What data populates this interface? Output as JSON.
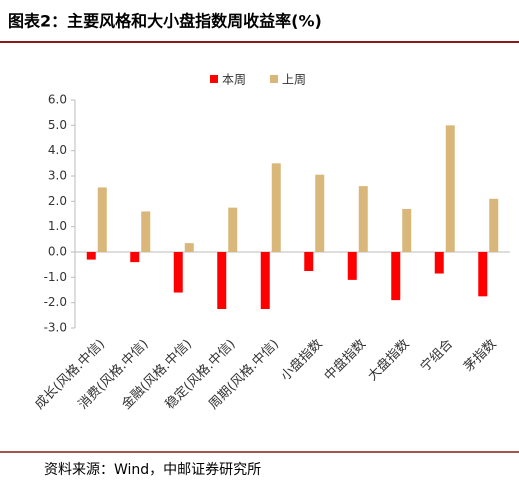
{
  "chart_data": {
    "type": "bar",
    "title": "图表2：主要风格和大小盘指数周收益率(%)",
    "source": "资料来源：Wind，中邮证券研究所",
    "categories": [
      "成长(风格.中信)",
      "消费(风格.中信)",
      "金融(风格.中信)",
      "稳定(风格.中信)",
      "周期(风格.中信)",
      "小盘指数",
      "中盘指数",
      "大盘指数",
      "宁组合",
      "茅指数"
    ],
    "series": [
      {
        "name": "本周",
        "color": "#ff0000",
        "values": [
          -0.3,
          -0.4,
          -1.6,
          -2.25,
          -2.25,
          -0.75,
          -1.1,
          -1.9,
          -0.85,
          -1.75
        ]
      },
      {
        "name": "上周",
        "color": "#d9b77a",
        "values": [
          2.55,
          1.6,
          0.35,
          1.75,
          3.5,
          3.05,
          2.6,
          1.7,
          5.0,
          2.1
        ]
      }
    ],
    "ylim": [
      -3,
      6
    ],
    "yticks": [
      {
        "value": 6,
        "label": "6.0"
      },
      {
        "value": 5,
        "label": "5.0"
      },
      {
        "value": 4,
        "label": "4.0"
      },
      {
        "value": 3,
        "label": "3.0"
      },
      {
        "value": 2,
        "label": "2.0"
      },
      {
        "value": 1,
        "label": "1.0"
      },
      {
        "value": 0,
        "label": "0.0"
      },
      {
        "value": -1,
        "label": "-1.0"
      },
      {
        "value": -2,
        "label": "-2.0"
      },
      {
        "value": -3,
        "label": "-3.0"
      }
    ],
    "legend": "top"
  }
}
